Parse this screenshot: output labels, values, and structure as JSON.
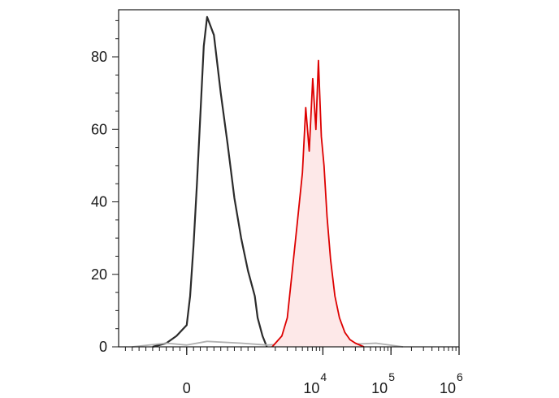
{
  "chart_data": {
    "type": "area",
    "title": "",
    "xlabel": "",
    "ylabel": "",
    "xscale": "biexponential",
    "xlim": [
      -1000,
      1000000
    ],
    "ylim": [
      0,
      93
    ],
    "grid": false,
    "legend": "none",
    "y_ticks": [
      {
        "value": 0,
        "label": "0"
      },
      {
        "value": 20,
        "label": "20"
      },
      {
        "value": 40,
        "label": "40"
      },
      {
        "value": 60,
        "label": "60"
      },
      {
        "value": 80,
        "label": "80"
      }
    ],
    "x_ticks": [
      {
        "value": 0,
        "base": "0",
        "exp": ""
      },
      {
        "value": 10000,
        "base": "10",
        "exp": "4"
      },
      {
        "value": 100000,
        "base": "10",
        "exp": "5"
      },
      {
        "value": 1000000,
        "base": "10",
        "exp": "6"
      }
    ],
    "series": [
      {
        "color": "#2b2b2b",
        "fill": "none",
        "x": [
          -500,
          -300,
          -150,
          0,
          50,
          100,
          150,
          200,
          250,
          300,
          400,
          500,
          600,
          700,
          800,
          900,
          1000,
          1100,
          1300,
          1500
        ],
        "values": [
          0,
          1,
          3,
          6,
          14,
          28,
          45,
          64,
          83,
          91,
          86,
          70,
          56,
          41,
          30,
          21,
          14,
          8,
          3,
          0
        ]
      },
      {
        "color": "#b0b0b0",
        "fill": "none",
        "x": [
          -800,
          -300,
          0,
          300,
          800,
          1500,
          3000,
          8000,
          20000,
          60000,
          150000
        ],
        "values": [
          0,
          1,
          0.5,
          1.5,
          1,
          0.5,
          0.8,
          0.4,
          0.6,
          1,
          0
        ]
      },
      {
        "color": "#dd0000",
        "fill": "#fde8e8",
        "x": [
          1800,
          2500,
          3000,
          3600,
          4200,
          5000,
          5600,
          6300,
          7100,
          7900,
          8600,
          9500,
          10400,
          11500,
          13000,
          15000,
          17500,
          21000,
          25000,
          30000,
          40000
        ],
        "values": [
          0,
          3,
          8,
          22,
          34,
          48,
          66,
          54,
          74,
          60,
          79,
          58,
          50,
          36,
          24,
          14,
          8,
          4,
          2,
          1,
          0
        ]
      }
    ]
  }
}
